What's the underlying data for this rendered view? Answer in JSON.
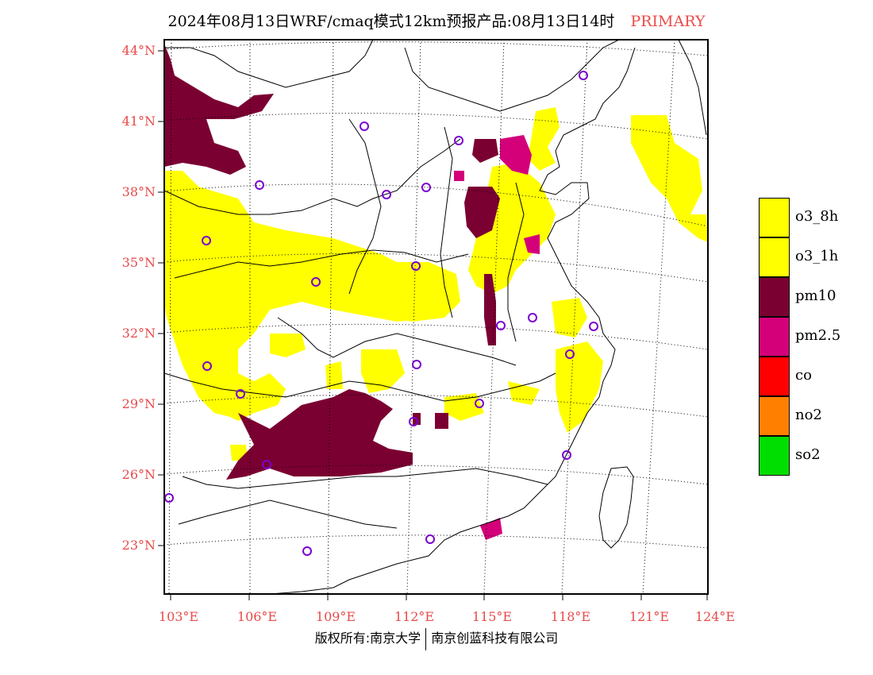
{
  "title": {
    "main": "2024年08月13日WRF/cmaq模式12km预报产品:08月13日14时",
    "tag": "PRIMARY"
  },
  "axes": {
    "lat_labels": [
      "44°N",
      "41°N",
      "38°N",
      "35°N",
      "32°N",
      "29°N",
      "26°N",
      "23°N"
    ],
    "lon_labels": [
      "103°E",
      "106°E",
      "109°E",
      "112°E",
      "115°E",
      "118°E",
      "121°E",
      "124°E"
    ]
  },
  "legend": [
    {
      "label": "o3_8h",
      "color": "#ffff00"
    },
    {
      "label": "o3_1h",
      "color": "#ffff00"
    },
    {
      "label": "pm10",
      "color": "#7b0032"
    },
    {
      "label": "pm2.5",
      "color": "#d4007a"
    },
    {
      "label": "co",
      "color": "#ff0000"
    },
    {
      "label": "no2",
      "color": "#ff8000"
    },
    {
      "label": "so2",
      "color": "#00dd00"
    }
  ],
  "footer": {
    "left": "版权所有:南京大学",
    "right": "南京创蓝科技有限公司"
  },
  "colors": {
    "label_red": "#e84a4a",
    "station_circle": "#7a00d0",
    "o3": "#ffff00",
    "pm10": "#7b0032",
    "pm25": "#d4007a"
  }
}
